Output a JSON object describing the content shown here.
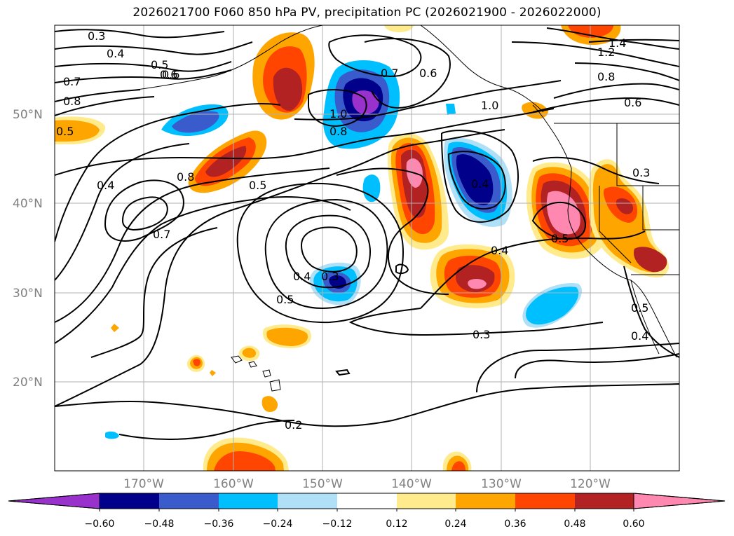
{
  "title": "2026021700 F060 850 hPa PV, precipitation PC (2026021900 - 2026022000)",
  "map": {
    "lat_labels": [
      "50°N",
      "40°N",
      "30°N",
      "20°N"
    ],
    "lon_labels": [
      "170°W",
      "160°W",
      "150°W",
      "140°W",
      "130°W",
      "120°W"
    ],
    "contour_labels": [
      "0.3",
      "0.4",
      "0.5",
      "0.6",
      "0.7",
      "0.8",
      "1.0",
      "0.8",
      "0.5",
      "0.4",
      "0.8",
      "0.5",
      "0.7",
      "0.6",
      "1.0",
      "0.7",
      "0.6",
      "1.4",
      "1.2",
      "0.8",
      "0.6",
      "0.3",
      "0.4",
      "0.5",
      "0.4",
      "0.3",
      "0.5",
      "0.3",
      "0.2",
      "0.4",
      "0.4",
      "0.5"
    ]
  },
  "colorbar": {
    "tick_labels": [
      "−0.60",
      "−0.48",
      "−0.36",
      "−0.24",
      "−0.12",
      "0.12",
      "0.24",
      "0.36",
      "0.48",
      "0.60"
    ],
    "colors": [
      "#9932cc",
      "#00008b",
      "#3a5bcc",
      "#00bfff",
      "#b0e0f8",
      "#ffffff",
      "#ffeb8c",
      "#ffa500",
      "#ff4500",
      "#b22222",
      "#ff88b0"
    ]
  },
  "colors": {
    "ocean": "#ffffff",
    "grid": "#b0b0b0",
    "contour": "#000000",
    "coast": "#000000"
  }
}
